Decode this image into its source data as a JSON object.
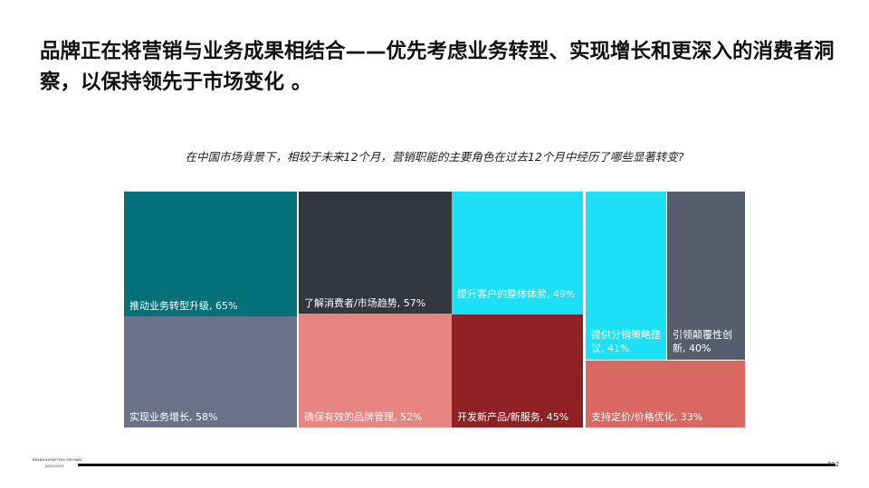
{
  "slide": {
    "headline": "品牌正在将营销与业务成果相结合——优先考虑业务转型、实现增长和更深入的消费者洞察，以保持领先于市场变化 。",
    "page_number": "012",
    "footer_brand_line1": "BRANDMARKETING PATHWAY",
    "footer_brand_line2": "2024/2025"
  },
  "chart_data": {
    "type": "treemap",
    "title": "在中国市场背景下，相较于未来12个月，营销职能的主要角色在过去12个月中经历了哪些显著转变?",
    "items": [
      {
        "label": "推动业务转型升级, 65%",
        "name": "推动业务转型升级",
        "value": 65,
        "color": "#037178"
      },
      {
        "label": "实现业务增长, 58%",
        "name": "实现业务增长",
        "value": 58,
        "color": "#697289"
      },
      {
        "label": "了解消费者/市场趋势, 57%",
        "name": "了解消费者/市场趋势",
        "value": 57,
        "color": "#33363d"
      },
      {
        "label": "确保有效的品牌管理, 52%",
        "name": "确保有效的品牌管理",
        "value": 52,
        "color": "#e68581"
      },
      {
        "label": "提升客户的整体体验, 49%",
        "name": "提升客户的整体体验",
        "value": 49,
        "color": "#1de0f6"
      },
      {
        "label": "开发新产品/新服务, 45%",
        "name": "开发新产品/新服务",
        "value": 45,
        "color": "#8f2124"
      },
      {
        "label": "提供分销策略建议, 41%",
        "name": "提供分销策略建议",
        "value": 41,
        "color": "#1de0f6"
      },
      {
        "label": "引领颠覆性创新, 40%",
        "name": "引领颠覆性创新",
        "value": 40,
        "color": "#565d6c"
      },
      {
        "label": "支持定价/价格优化, 33%",
        "name": "支持定价/价格优化",
        "value": 33,
        "color": "#d96863"
      }
    ]
  }
}
